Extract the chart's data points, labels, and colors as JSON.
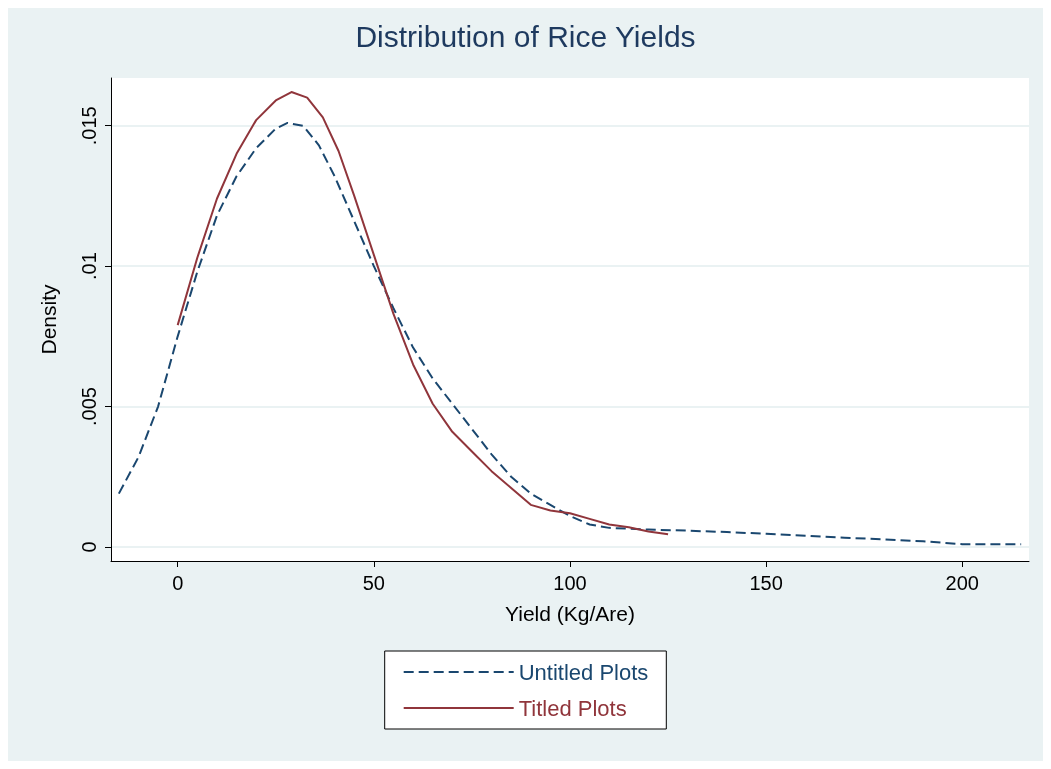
{
  "chart_data": {
    "type": "line",
    "title": "Distribution of Rice Yields",
    "xlabel": "Yield (Kg/Are)",
    "ylabel": "Density",
    "xlim": [
      -17,
      217
    ],
    "xticks": [
      0,
      50,
      100,
      150,
      200
    ],
    "ylim": [
      -0.0005,
      0.0167
    ],
    "yticks": [
      0,
      {
        "value": 0.005,
        "label": ".005"
      },
      {
        "value": 0.01,
        "label": ".01"
      },
      {
        "value": 0.015,
        "label": ".015"
      }
    ],
    "grid": "y",
    "legend": "bottom",
    "marker": "none",
    "series": [
      {
        "name": "Untitled Plots",
        "color": "#1a476f",
        "line_style": "dashed",
        "x": [
          -15,
          -10,
          -5,
          0,
          5,
          10,
          15,
          20,
          25,
          28,
          32,
          36,
          40,
          45,
          50,
          55,
          60,
          65,
          70,
          75,
          80,
          85,
          90,
          95,
          100,
          105,
          110,
          120,
          130,
          140,
          150,
          160,
          170,
          180,
          190,
          200,
          215
        ],
        "values": [
          0.0019,
          0.0032,
          0.005,
          0.0075,
          0.0098,
          0.0118,
          0.0132,
          0.0142,
          0.0149,
          0.0151,
          0.015,
          0.0143,
          0.0132,
          0.0116,
          0.01,
          0.0085,
          0.0071,
          0.006,
          0.0051,
          0.0042,
          0.0033,
          0.0025,
          0.0019,
          0.0015,
          0.0011,
          0.0008,
          0.00068,
          0.00062,
          0.00058,
          0.00053,
          0.00047,
          0.0004,
          0.00033,
          0.00027,
          0.0002,
          0.0001,
          0.0001
        ]
      },
      {
        "name": "Titled Plots",
        "color": "#90353b",
        "line_style": "solid",
        "x": [
          0,
          5,
          10,
          15,
          20,
          25,
          29,
          33,
          37,
          41,
          45,
          50,
          55,
          60,
          65,
          70,
          75,
          80,
          85,
          90,
          95,
          100,
          105,
          110,
          115,
          120,
          125
        ],
        "values": [
          0.0079,
          0.0103,
          0.0124,
          0.014,
          0.0152,
          0.0159,
          0.0162,
          0.016,
          0.0153,
          0.0141,
          0.0125,
          0.0104,
          0.0083,
          0.0065,
          0.0051,
          0.0041,
          0.0034,
          0.0027,
          0.0021,
          0.0015,
          0.0013,
          0.0012,
          0.001,
          0.0008,
          0.0007,
          0.00055,
          0.00045
        ]
      }
    ]
  }
}
